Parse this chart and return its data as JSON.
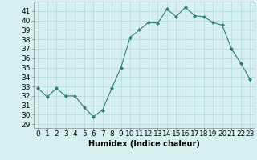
{
  "x": [
    0,
    1,
    2,
    3,
    4,
    5,
    6,
    7,
    8,
    9,
    10,
    11,
    12,
    13,
    14,
    15,
    16,
    17,
    18,
    19,
    20,
    21,
    22,
    23
  ],
  "y": [
    32.8,
    31.9,
    32.8,
    32.0,
    32.0,
    30.8,
    29.8,
    30.5,
    32.8,
    35.0,
    38.2,
    39.0,
    39.8,
    39.7,
    41.2,
    40.4,
    41.4,
    40.5,
    40.4,
    39.8,
    39.5,
    37.0,
    35.5,
    33.8
  ],
  "line_color": "#2e7d6e",
  "marker": "D",
  "marker_size": 2,
  "bg_color": "#d6f0ef",
  "grid_color": "#b0d8d4",
  "xlabel": "Humidex (Indice chaleur)",
  "ylabel_ticks": [
    29,
    30,
    31,
    32,
    33,
    34,
    35,
    36,
    37,
    38,
    39,
    40,
    41
  ],
  "ylim": [
    28.6,
    42.0
  ],
  "xlim": [
    -0.5,
    23.5
  ],
  "label_fontsize": 7,
  "tick_fontsize": 6.5
}
